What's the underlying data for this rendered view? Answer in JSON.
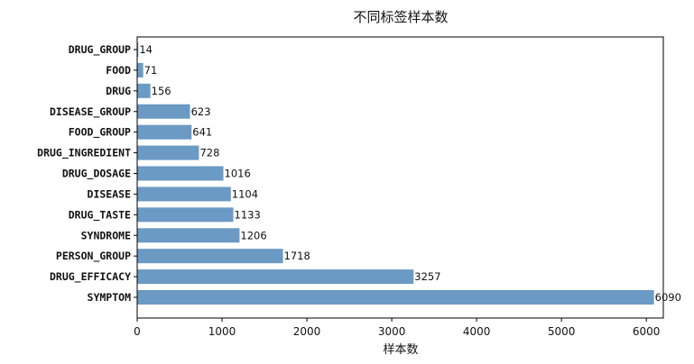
{
  "chart_data": {
    "type": "bar",
    "orientation": "horizontal",
    "title": "不同标签样本数",
    "xlabel": "样本数",
    "ylabel": "",
    "categories": [
      "DRUG_GROUP",
      "FOOD",
      "DRUG",
      "DISEASE_GROUP",
      "FOOD_GROUP",
      "DRUG_INGREDIENT",
      "DRUG_DOSAGE",
      "DISEASE",
      "DRUG_TASTE",
      "SYNDROME",
      "PERSON_GROUP",
      "DRUG_EFFICACY",
      "SYMPTOM"
    ],
    "values": [
      14,
      71,
      156,
      623,
      641,
      728,
      1016,
      1104,
      1133,
      1206,
      1718,
      3257,
      6090
    ],
    "xlim": [
      0,
      6200
    ],
    "xticks": [
      0,
      1000,
      2000,
      3000,
      4000,
      5000,
      6000
    ],
    "bar_color": "#6b9ac4",
    "grid": false,
    "data_labels": true
  }
}
